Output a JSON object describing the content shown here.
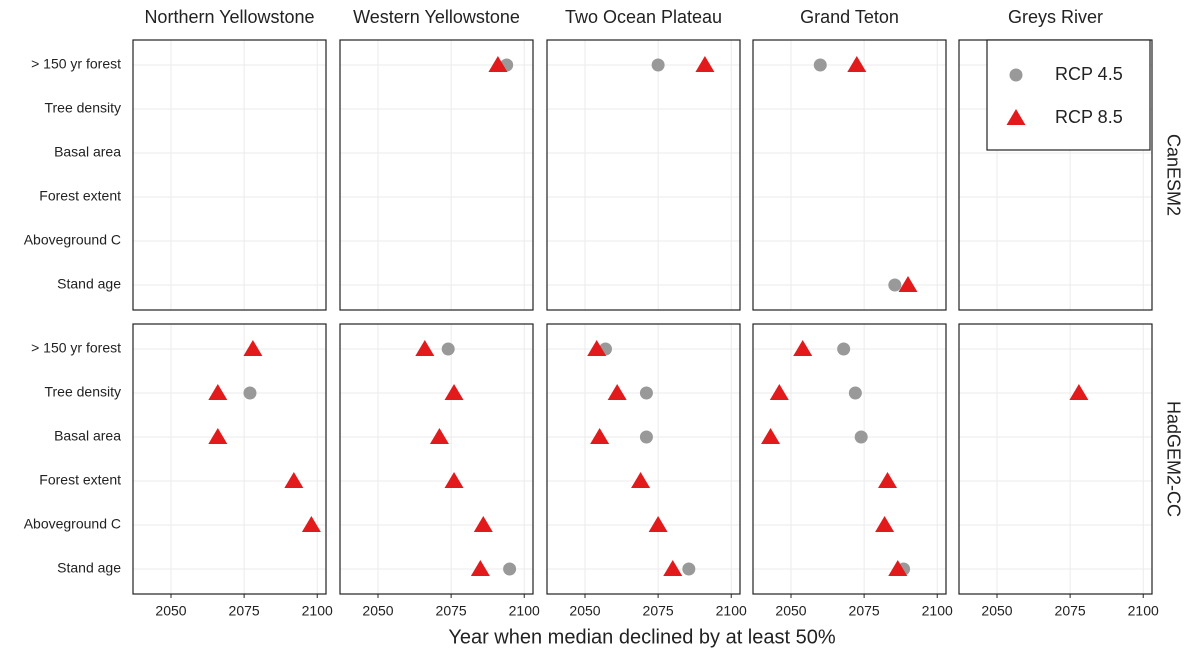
{
  "chart_data": {
    "type": "dot",
    "xlabel": "Year when median declined by at least 50%",
    "facet_columns": [
      "Northern Yellowstone",
      "Western Yellowstone",
      "Two Ocean Plateau",
      "Grand Teton",
      "Greys River"
    ],
    "facet_rows": [
      "CanESM2",
      "HadGEM2-CC"
    ],
    "categories": [
      "> 150 yr forest",
      "Tree density",
      "Basal area",
      "Forest extent",
      "Aboveground C",
      "Stand age"
    ],
    "xlim": [
      2037,
      2103
    ],
    "xticks": [
      2050,
      2075,
      2100
    ],
    "grid": true,
    "legend": "top-right",
    "series": [
      {
        "name": "RCP 4.5",
        "color": "#999999",
        "marker": "circle",
        "values": [
          [
            [
              null,
              null,
              null,
              null,
              null,
              null
            ],
            [
              2094,
              null,
              null,
              null,
              null,
              null
            ],
            [
              2075,
              null,
              null,
              null,
              null,
              null
            ],
            [
              2060,
              null,
              null,
              null,
              null,
              2085.5
            ],
            [
              null,
              null,
              null,
              null,
              null,
              null
            ]
          ],
          [
            [
              null,
              2077,
              null,
              null,
              null,
              null
            ],
            [
              2074,
              null,
              null,
              null,
              null,
              2095
            ],
            [
              2057,
              2071,
              2071,
              null,
              null,
              2085.5
            ],
            [
              2068,
              2072,
              2074,
              null,
              null,
              2088.5
            ],
            [
              null,
              null,
              null,
              null,
              null,
              null
            ]
          ]
        ]
      },
      {
        "name": "RCP 8.5",
        "color": "#e31a1c",
        "marker": "triangle",
        "values": [
          [
            [
              null,
              null,
              null,
              null,
              null,
              null
            ],
            [
              2091,
              null,
              null,
              null,
              null,
              null
            ],
            [
              2091,
              null,
              null,
              null,
              null,
              null
            ],
            [
              2072.5,
              null,
              null,
              null,
              null,
              2090
            ],
            [
              null,
              null,
              null,
              null,
              null,
              null
            ]
          ],
          [
            [
              2078,
              2066,
              2066,
              2092,
              2098,
              null
            ],
            [
              2066,
              2076,
              2071,
              2076,
              2086,
              2085
            ],
            [
              2054,
              2061,
              2055,
              2069,
              2075,
              2080
            ],
            [
              2054,
              2046,
              2043,
              2083,
              2082,
              2086.5
            ],
            [
              null,
              2078,
              null,
              null,
              null,
              null
            ]
          ]
        ]
      }
    ]
  }
}
